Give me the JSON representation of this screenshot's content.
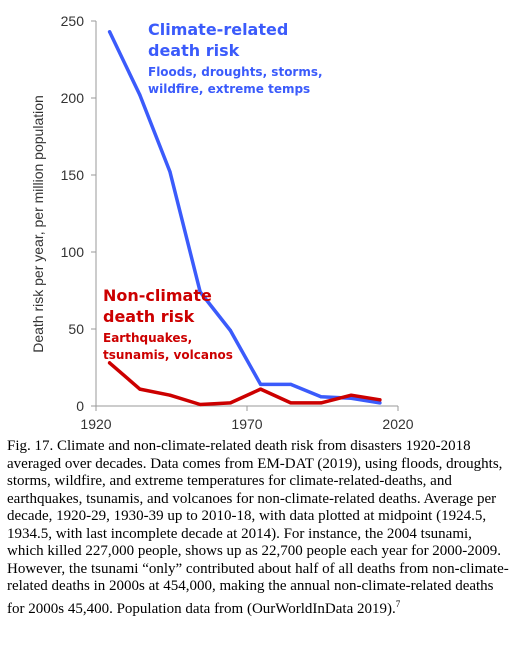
{
  "chart_data": {
    "type": "line",
    "title": "",
    "xlabel": "",
    "ylabel": "Death risk per year, per million population",
    "xlim": [
      1920,
      2020
    ],
    "ylim": [
      0,
      250
    ],
    "x_ticks": [
      1920,
      1970,
      2020
    ],
    "y_ticks": [
      0,
      50,
      100,
      150,
      200,
      250
    ],
    "grid": false,
    "legend": "none",
    "series": [
      {
        "name": "Climate-related death risk",
        "color": "#3b5bfb",
        "x": [
          1924.5,
          1934.5,
          1944.5,
          1954.5,
          1964.5,
          1974.5,
          1984.5,
          1994.5,
          2004.5,
          2014
        ],
        "y": [
          243,
          202,
          152,
          74,
          49,
          14,
          14,
          6,
          5,
          2
        ]
      },
      {
        "name": "Non-climate death risk",
        "color": "#cc0000",
        "x": [
          1924.5,
          1934.5,
          1944.5,
          1954.5,
          1964.5,
          1974.5,
          1984.5,
          1994.5,
          2004.5,
          2014
        ],
        "y": [
          28,
          11,
          7,
          1,
          2,
          11,
          2,
          2,
          7,
          4
        ]
      }
    ],
    "annotations": [
      {
        "series": 0,
        "color": "#3b5bfb",
        "title_lines": [
          "Climate-related",
          "death risk"
        ],
        "sub_lines": [
          "Floods, droughts, storms,",
          "wildfire, extreme temps"
        ]
      },
      {
        "series": 1,
        "color": "#cc0000",
        "title_lines": [
          "Non-climate",
          "death risk"
        ],
        "sub_lines": [
          "Earthquakes,",
          "tsunamis, volcanos"
        ]
      }
    ]
  },
  "caption": "Fig. 17. Climate and non-climate-related death risk from disasters 1920-2018 averaged over decades. Data comes from EM-DAT (2019), using floods, droughts, storms, wildfire, and extreme temperatures for climate-related-deaths, and earthquakes, tsunamis, and volcanoes for non-climate-related deaths. Average per decade, 1920-29, 1930-39 up to 2010-18, with data plotted at midpoint (1924.5, 1934.5, with last incomplete decade at 2014). For instance, the 2004 tsunami, which killed 227,000 people, shows up as 22,700 people each year for 2000-2009. However, the tsunami “only” contributed about half of all deaths from non-climate-related deaths in 2000s at 454,000, making the annual non-climate-related deaths for 2000s 45,400. Population data from (OurWorldInData 2019).",
  "caption_footnote": "7"
}
